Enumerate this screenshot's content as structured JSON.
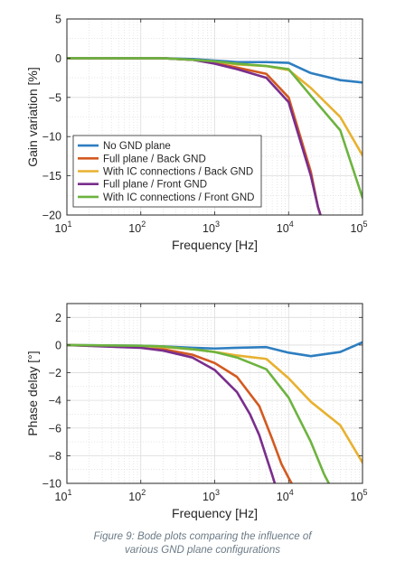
{
  "chart_data": [
    {
      "type": "line",
      "xlabel": "Frequency [Hz]",
      "ylabel": "Gain variation [%]",
      "xscale": "log",
      "xlim": [
        10,
        100000
      ],
      "ylim": [
        -20,
        5
      ],
      "xticks": [
        {
          "value": 10,
          "base": "10",
          "exp": "1"
        },
        {
          "value": 100,
          "base": "10",
          "exp": "2"
        },
        {
          "value": 1000,
          "base": "10",
          "exp": "3"
        },
        {
          "value": 10000,
          "base": "10",
          "exp": "4"
        },
        {
          "value": 100000,
          "base": "10",
          "exp": "5"
        }
      ],
      "yticks": [
        5,
        0,
        -5,
        -10,
        -15,
        -20
      ],
      "grid": true,
      "legend": "bottom-left",
      "series": [
        {
          "name": "No GND plane",
          "color": "#2e7ec0",
          "x": [
            10,
            50,
            200,
            500,
            1000,
            2000,
            5000,
            10000,
            20000,
            50000,
            100000
          ],
          "y": [
            0,
            0,
            0,
            -0.1,
            -0.3,
            -0.5,
            -0.5,
            -0.6,
            -1.9,
            -2.8,
            -3.1
          ]
        },
        {
          "name": "Full plane / Back GND",
          "color": "#d35a20",
          "x": [
            10,
            50,
            200,
            500,
            1000,
            2000,
            5000,
            10000,
            20000,
            25000,
            27000
          ],
          "y": [
            0,
            0,
            0,
            -0.2,
            -0.6,
            -1.2,
            -2.0,
            -5.0,
            -14.5,
            -19.0,
            -20.0
          ]
        },
        {
          "name": "With IC connections / Back GND",
          "color": "#e8b130",
          "x": [
            10,
            50,
            200,
            500,
            1000,
            2000,
            5000,
            10000,
            20000,
            50000,
            100000
          ],
          "y": [
            0,
            0,
            0,
            -0.2,
            -0.4,
            -0.8,
            -1.0,
            -1.5,
            -3.8,
            -7.5,
            -12.4
          ]
        },
        {
          "name": "Full plane / Front GND",
          "color": "#7a2e8c",
          "x": [
            10,
            50,
            200,
            500,
            1000,
            2000,
            5000,
            10000,
            20000,
            25000,
            27000
          ],
          "y": [
            0,
            0,
            0,
            -0.2,
            -0.7,
            -1.4,
            -2.5,
            -5.6,
            -15.0,
            -19.0,
            -20.0
          ]
        },
        {
          "name": "With IC connections / Front GND",
          "color": "#6db33f",
          "x": [
            10,
            50,
            200,
            500,
            1000,
            2000,
            5000,
            10000,
            20000,
            50000,
            100000
          ],
          "y": [
            0,
            0,
            0,
            -0.2,
            -0.4,
            -0.7,
            -1.0,
            -1.4,
            -4.8,
            -9.2,
            -17.8
          ]
        }
      ]
    },
    {
      "type": "line",
      "xlabel": "Frequency [Hz]",
      "ylabel": "Phase delay [°]",
      "xscale": "log",
      "xlim": [
        10,
        100000
      ],
      "ylim": [
        -10,
        3
      ],
      "xticks": [
        {
          "value": 10,
          "base": "10",
          "exp": "1"
        },
        {
          "value": 100,
          "base": "10",
          "exp": "2"
        },
        {
          "value": 1000,
          "base": "10",
          "exp": "3"
        },
        {
          "value": 10000,
          "base": "10",
          "exp": "4"
        },
        {
          "value": 100000,
          "base": "10",
          "exp": "5"
        }
      ],
      "yticks": [
        2,
        0,
        -2,
        -4,
        -6,
        -8,
        -10
      ],
      "grid": true,
      "legend": "none",
      "series": [
        {
          "name": "No GND plane",
          "color": "#2e7ec0",
          "x": [
            10,
            100,
            200,
            500,
            1000,
            2000,
            5000,
            10000,
            20000,
            50000,
            100000
          ],
          "y": [
            0,
            -0.05,
            -0.1,
            -0.2,
            -0.25,
            -0.2,
            -0.15,
            -0.55,
            -0.8,
            -0.5,
            0.2
          ]
        },
        {
          "name": "Full plane / Back GND",
          "color": "#d35a20",
          "x": [
            10,
            100,
            200,
            500,
            1000,
            2000,
            4000,
            6000,
            8000,
            10000,
            11000
          ],
          "y": [
            0,
            -0.15,
            -0.3,
            -0.7,
            -1.3,
            -2.3,
            -4.4,
            -6.8,
            -8.6,
            -9.6,
            -10
          ]
        },
        {
          "name": "With IC connections / Back GND",
          "color": "#e8b130",
          "x": [
            10,
            100,
            200,
            500,
            1000,
            2000,
            5000,
            10000,
            20000,
            50000,
            100000
          ],
          "y": [
            0,
            -0.1,
            -0.15,
            -0.3,
            -0.5,
            -0.75,
            -1.0,
            -2.4,
            -4.1,
            -5.8,
            -8.5
          ]
        },
        {
          "name": "Full plane / Front GND",
          "color": "#7a2e8c",
          "x": [
            10,
            100,
            200,
            500,
            1000,
            2000,
            3000,
            4000,
            5000,
            6000,
            6500
          ],
          "y": [
            0,
            -0.2,
            -0.4,
            -0.9,
            -1.8,
            -3.4,
            -5.0,
            -6.5,
            -8.1,
            -9.4,
            -10
          ]
        },
        {
          "name": "With IC connections / Front GND",
          "color": "#6db33f",
          "x": [
            10,
            100,
            200,
            500,
            1000,
            2000,
            5000,
            10000,
            20000,
            30000,
            35000
          ],
          "y": [
            0,
            -0.05,
            -0.1,
            -0.3,
            -0.5,
            -0.9,
            -1.75,
            -3.8,
            -7.0,
            -9.3,
            -10
          ]
        }
      ]
    }
  ],
  "caption": {
    "line1": "Figure 9: Bode plots comparing the influence of",
    "line2": "various GND plane configurations"
  }
}
